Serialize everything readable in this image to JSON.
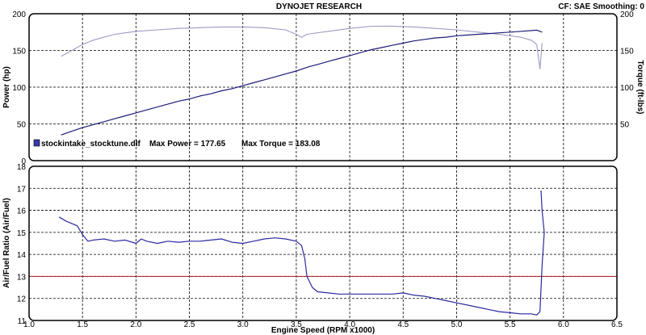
{
  "header": {
    "title": "DYNOJET RESEARCH",
    "cf_info": "CF: SAE  Smoothing: 0"
  },
  "legend": {
    "file": "stockintake_stocktune.dlf",
    "max_power": "Max Power = 177.65",
    "max_torque": "Max Torque = 183.08"
  },
  "colors": {
    "power": "#1c1c7a",
    "torque": "#9a9ac4",
    "afr": "#2a2aa0",
    "reference": "#b02020",
    "frame": "#000000"
  },
  "chart_data": [
    {
      "type": "line",
      "title": "",
      "xlabel": "",
      "ylabel": "Power (hp)",
      "y2label": "Torque (ft-lbs)",
      "xlim": [
        1.0,
        6.5
      ],
      "ylim": [
        0,
        200
      ],
      "y2lim": [
        0,
        200
      ],
      "xticks": [
        "1.0",
        "1.5",
        "2.0",
        "2.5",
        "3.0",
        "3.5",
        "4.0",
        "4.5",
        "5.0",
        "5.5",
        "6.0",
        "6.5"
      ],
      "yticks": [
        "0",
        "50",
        "100",
        "150",
        "200"
      ],
      "y2ticks": [
        "50",
        "100",
        "150",
        "200"
      ],
      "grid": true,
      "legend_position": "bottom-left",
      "series": [
        {
          "name": "Power",
          "x": [
            1.3,
            1.4,
            1.5,
            1.6,
            1.7,
            1.8,
            1.9,
            2.0,
            2.1,
            2.2,
            2.3,
            2.4,
            2.5,
            2.6,
            2.7,
            2.8,
            2.9,
            3.0,
            3.1,
            3.2,
            3.3,
            3.4,
            3.5,
            3.6,
            3.7,
            3.8,
            3.9,
            4.0,
            4.1,
            4.2,
            4.3,
            4.4,
            4.5,
            4.6,
            4.7,
            4.8,
            4.9,
            5.0,
            5.1,
            5.2,
            5.3,
            5.4,
            5.5,
            5.6,
            5.7,
            5.75,
            5.8
          ],
          "y": [
            35,
            40,
            45,
            49,
            53,
            57,
            61,
            65,
            69,
            73,
            77,
            81,
            84,
            88,
            91,
            95,
            98,
            102,
            106,
            110,
            114,
            118,
            122,
            127,
            131,
            135,
            139,
            143,
            147,
            151,
            154,
            157,
            160,
            163,
            165,
            167,
            168,
            170,
            171,
            172,
            173,
            174,
            175,
            176,
            177,
            177.65,
            175
          ]
        },
        {
          "name": "Torque",
          "x": [
            1.3,
            1.4,
            1.5,
            1.6,
            1.7,
            1.8,
            1.9,
            2.0,
            2.2,
            2.4,
            2.6,
            2.8,
            3.0,
            3.2,
            3.4,
            3.5,
            3.55,
            3.6,
            3.8,
            4.0,
            4.2,
            4.4,
            4.6,
            4.8,
            5.0,
            5.2,
            5.4,
            5.6,
            5.7,
            5.75,
            5.78,
            5.8
          ],
          "y": [
            142,
            150,
            158,
            164,
            168,
            172,
            174,
            176,
            178,
            180,
            181,
            182,
            182,
            181,
            178,
            172,
            168,
            172,
            176,
            180,
            183,
            183.08,
            182,
            180,
            178,
            175,
            172,
            168,
            164,
            158,
            125,
            160
          ]
        }
      ]
    },
    {
      "type": "line",
      "title": "",
      "xlabel": "Engine Speed (RPM x1000)",
      "ylabel": "Air/Fuel Ratio (Air/Fuel)",
      "xlim": [
        1.0,
        6.5
      ],
      "ylim": [
        11,
        18
      ],
      "xticks": [
        "1.0",
        "1.5",
        "2.0",
        "2.5",
        "3.0",
        "3.5",
        "4.0",
        "4.5",
        "5.0",
        "5.5",
        "6.0",
        "6.5"
      ],
      "yticks": [
        "11",
        "12",
        "13",
        "14",
        "15",
        "16",
        "17",
        "18"
      ],
      "grid": true,
      "reference_line": 13,
      "series": [
        {
          "name": "AFR",
          "x": [
            1.28,
            1.35,
            1.45,
            1.5,
            1.55,
            1.6,
            1.7,
            1.8,
            1.9,
            2.0,
            2.05,
            2.1,
            2.2,
            2.3,
            2.4,
            2.5,
            2.6,
            2.7,
            2.8,
            2.9,
            3.0,
            3.1,
            3.2,
            3.3,
            3.4,
            3.5,
            3.55,
            3.58,
            3.6,
            3.65,
            3.7,
            3.8,
            3.9,
            4.0,
            4.2,
            4.4,
            4.5,
            4.6,
            4.7,
            4.8,
            4.9,
            5.0,
            5.1,
            5.2,
            5.3,
            5.4,
            5.5,
            5.6,
            5.7,
            5.75,
            5.78,
            5.8,
            5.82,
            5.8,
            5.79
          ],
          "y": [
            15.7,
            15.5,
            15.3,
            14.9,
            14.6,
            14.65,
            14.7,
            14.6,
            14.65,
            14.5,
            14.7,
            14.6,
            14.5,
            14.6,
            14.55,
            14.6,
            14.6,
            14.65,
            14.7,
            14.55,
            14.5,
            14.6,
            14.7,
            14.75,
            14.7,
            14.6,
            14.4,
            13.8,
            13.0,
            12.5,
            12.3,
            12.25,
            12.2,
            12.2,
            12.2,
            12.2,
            12.25,
            12.15,
            12.1,
            12.0,
            11.9,
            11.8,
            11.7,
            11.6,
            11.5,
            11.4,
            11.35,
            11.3,
            11.3,
            11.25,
            11.4,
            13.5,
            15.0,
            16.0,
            16.9
          ]
        }
      ]
    }
  ]
}
